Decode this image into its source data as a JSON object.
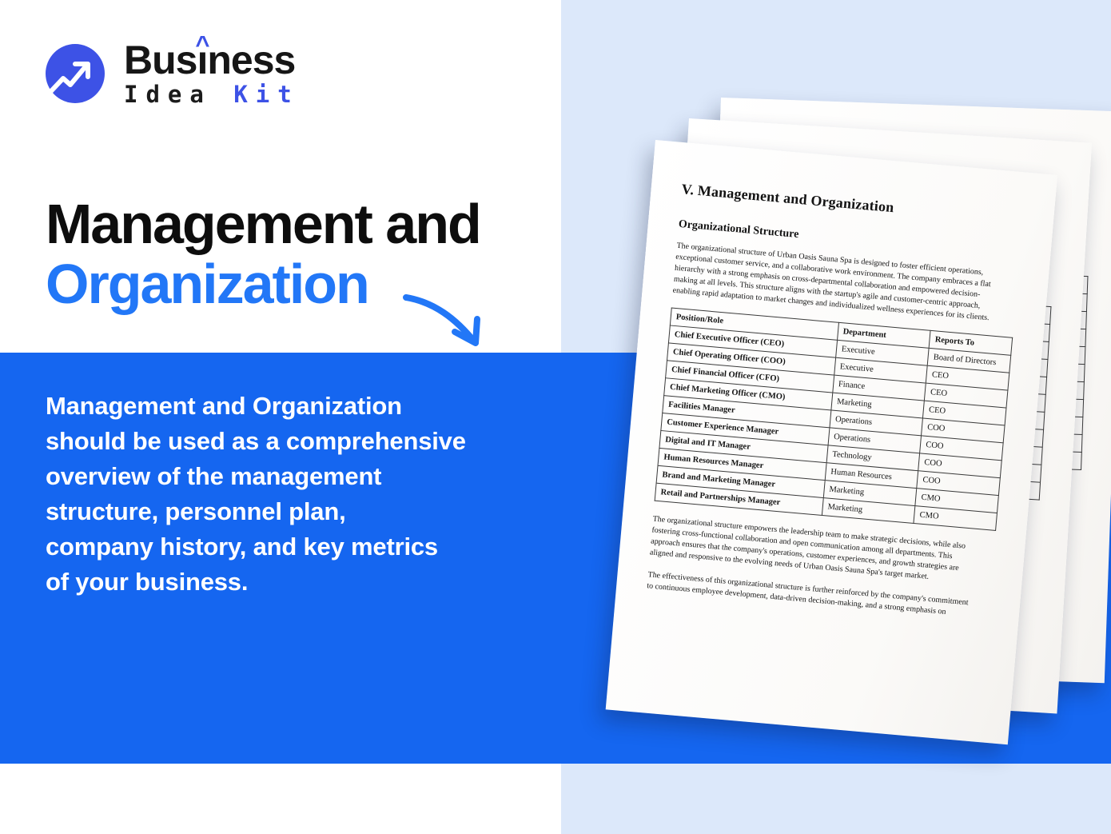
{
  "brand": {
    "word1_pre": "Bus",
    "word1_i": "ı",
    "word1_caret": "^",
    "word1_post": "ness",
    "word2_dark": "Idea",
    "word2_accent": "Kit"
  },
  "headline": {
    "line1": "Management and",
    "line2": "Organization"
  },
  "description": {
    "lines": [
      "Management and Organization",
      "should be used as a comprehensive",
      "overview of the management",
      "structure, personnel plan,",
      "company history, and key metrics",
      "of your business."
    ]
  },
  "colors": {
    "accent_blue": "#2277f7",
    "band_blue": "#1566f0",
    "logo_blue": "#3d52e6",
    "panel_blue": "#dce8fa"
  },
  "document": {
    "title": "V. Management and Organization",
    "subtitle": "Organizational Structure",
    "intro_lines": [
      "The organizational structure of Urban Oasis Sauna Spa is designed to foster efficient operations,",
      "exceptional customer service, and a collaborative work environment. The company embraces a flat",
      "hierarchy with a strong emphasis on cross-departmental collaboration and empowered decision-",
      "making at all levels. This structure aligns with the startup's agile and customer-centric approach,",
      "enabling rapid adaptation to market changes and individualized wellness experiences for its clients."
    ],
    "table": {
      "headers": [
        "Position/Role",
        "Department",
        "Reports To"
      ],
      "rows": [
        [
          "Chief Executive Officer (CEO)",
          "Executive",
          "Board of Directors"
        ],
        [
          "Chief Operating Officer (COO)",
          "Executive",
          "CEO"
        ],
        [
          "Chief Financial Officer (CFO)",
          "Finance",
          "CEO"
        ],
        [
          "Chief Marketing Officer (CMO)",
          "Marketing",
          "CEO"
        ],
        [
          "Facilities Manager",
          "Operations",
          "COO"
        ],
        [
          "Customer Experience Manager",
          "Operations",
          "COO"
        ],
        [
          "Digital and IT Manager",
          "Technology",
          "COO"
        ],
        [
          "Human Resources Manager",
          "Human Resources",
          "COO"
        ],
        [
          "Brand and Marketing Manager",
          "Marketing",
          "CMO"
        ],
        [
          "Retail and Partnerships Manager",
          "Marketing",
          "CMO"
        ]
      ]
    },
    "para2_lines": [
      "The organizational structure empowers the leadership team to make strategic decisions, while also",
      "fostering cross-functional collaboration and open communication among all departments. This",
      "approach ensures that the company's operations, customer experiences, and growth strategies are",
      "aligned and responsive to the evolving needs of Urban Oasis Sauna Spa's target market."
    ],
    "para3_lines": [
      "The effectiveness of this organizational structure is further reinforced by the company's commitment",
      "to continuous employee development, data-driven decision-making, and a strong emphasis on"
    ]
  }
}
